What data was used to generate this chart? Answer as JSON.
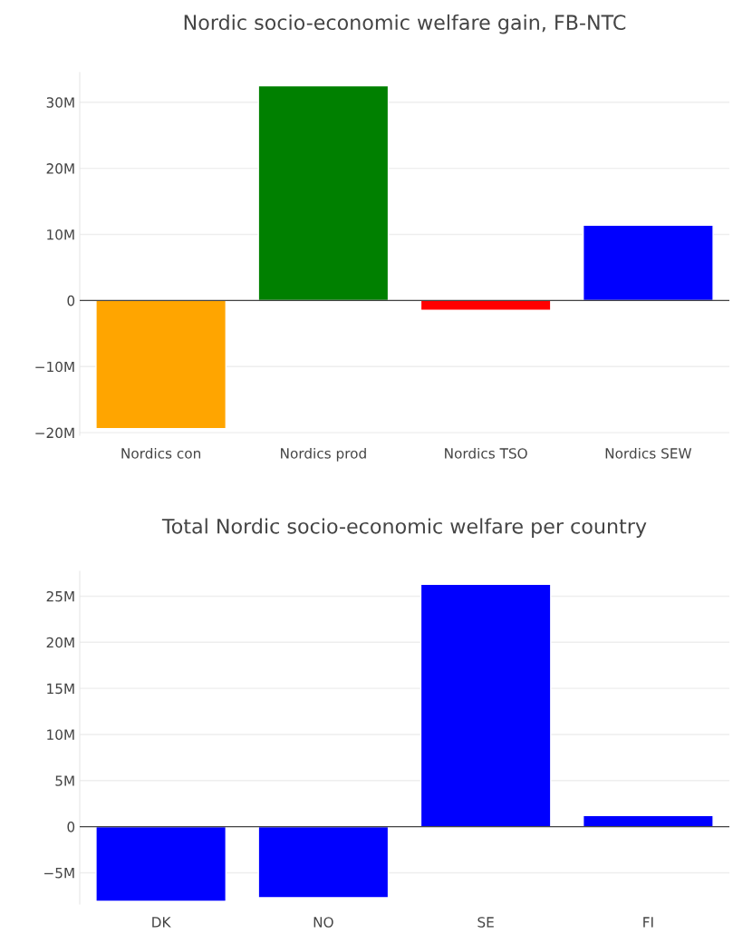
{
  "chart_data": [
    {
      "type": "bar",
      "title": "Nordic socio-economic welfare gain, FB-NTC",
      "categories": [
        "Nordics con",
        "Nordics prod",
        "Nordics TSO",
        "Nordics SEW"
      ],
      "values": [
        -19400000,
        32500000,
        -1500000,
        11400000
      ],
      "colors": [
        "#ffa500",
        "#008000",
        "#ff0000",
        "#0000ff"
      ],
      "ylim": [
        -20400000,
        34500000
      ],
      "yticks": [
        {
          "value": -20000000,
          "label": "−20M"
        },
        {
          "value": -10000000,
          "label": "−10M"
        },
        0,
        {
          "value": 10000000,
          "label": "10M"
        },
        {
          "value": 20000000,
          "label": "20M"
        },
        {
          "value": 30000000,
          "label": "30M"
        }
      ],
      "grid": "y"
    },
    {
      "type": "bar",
      "title": "Total Nordic socio-economic welfare per country",
      "categories": [
        "DK",
        "NO",
        "SE",
        "FI"
      ],
      "values": [
        -8100000,
        -7700000,
        26300000,
        1200000
      ],
      "colors": [
        "#0000ff",
        "#0000ff",
        "#0000ff",
        "#0000ff"
      ],
      "ylim": [
        -8400000,
        27700000
      ],
      "yticks": [
        {
          "value": -5000000,
          "label": "−5M"
        },
        0,
        {
          "value": 5000000,
          "label": "5M"
        },
        {
          "value": 10000000,
          "label": "10M"
        },
        {
          "value": 15000000,
          "label": "15M"
        },
        {
          "value": 20000000,
          "label": "20M"
        },
        {
          "value": 25000000,
          "label": "25M"
        }
      ],
      "grid": "y"
    }
  ]
}
